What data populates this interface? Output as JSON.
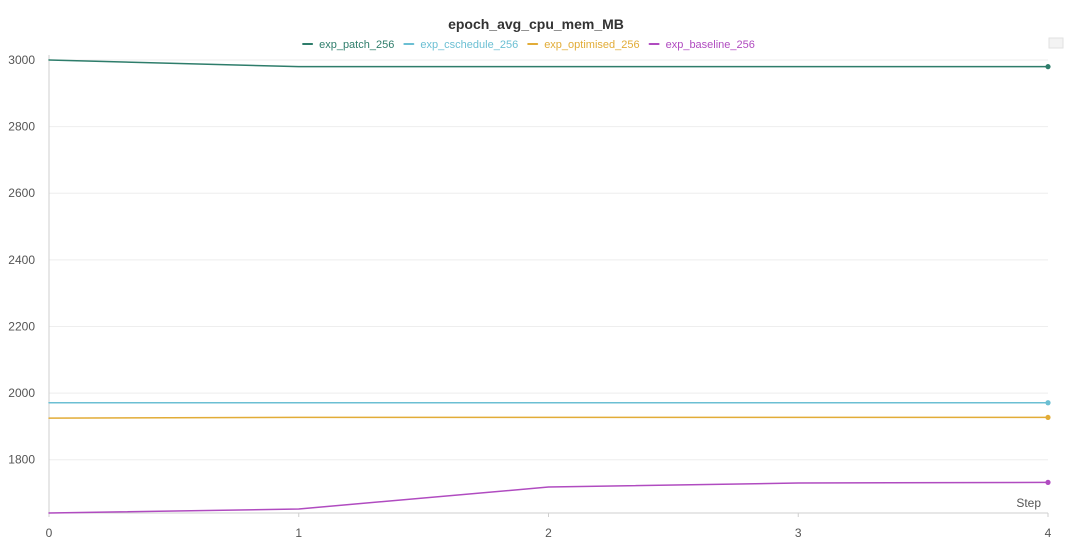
{
  "chart_data": {
    "type": "line",
    "title": "epoch_avg_cpu_mem_MB",
    "xlabel": "Step",
    "ylabel": "",
    "x": [
      0,
      1,
      2,
      3,
      4
    ],
    "xlim": [
      0,
      4
    ],
    "ylim": [
      1640,
      3000
    ],
    "x_ticks": [
      "0",
      "1",
      "2",
      "3",
      "4"
    ],
    "y_ticks": [
      1800,
      2000,
      2200,
      2400,
      2600,
      2800,
      3000
    ],
    "y_tick_labels": [
      "1800",
      "2000",
      "2200",
      "2400",
      "2600",
      "2800",
      "3000"
    ],
    "grid": true,
    "legend_position": "top-center",
    "series": [
      {
        "name": "exp_patch_256",
        "color": "#2e7d6b",
        "values": [
          3000,
          2980,
          2980,
          2980,
          2980
        ]
      },
      {
        "name": "exp_cschedule_256",
        "color": "#6bbfd3",
        "values": [
          1971,
          1971,
          1971,
          1971,
          1971
        ]
      },
      {
        "name": "exp_optimised_256",
        "color": "#e2ac37",
        "values": [
          1925,
          1927,
          1927,
          1927,
          1927
        ]
      },
      {
        "name": "exp_baseline_256",
        "color": "#b04bc0",
        "values": [
          1640,
          1652,
          1718,
          1730,
          1732
        ]
      }
    ]
  }
}
